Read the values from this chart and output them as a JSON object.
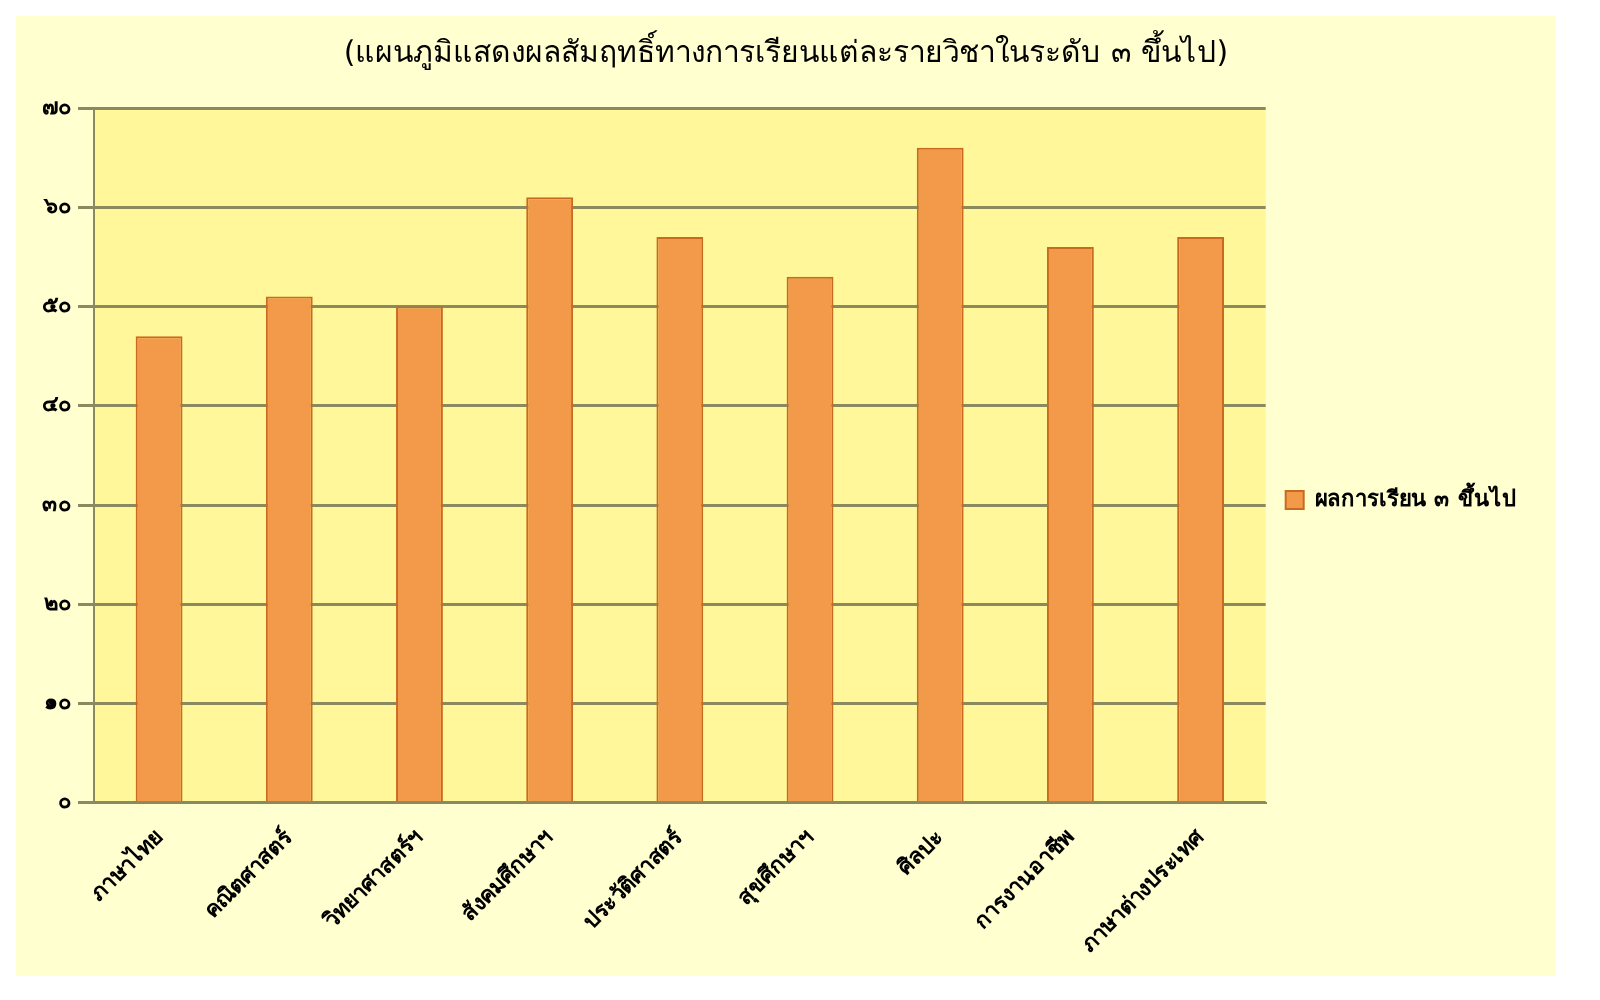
{
  "chart_data": {
    "type": "bar",
    "title": "(แผนภูมิแสดงผลสัมฤทธิ์ทางการเรียนแต่ละรายวิชาในระดับ ๓ ขึ้นไป)",
    "categories": [
      "ภาษาไทย",
      "คณิตศาสตร์",
      "วิทยาศาสตร์ฯ",
      "สังคมศึกษาฯ",
      "ประวัติศาสตร์",
      "สุขศึกษาฯ",
      "ศิลปะ",
      "การงานอาชีพ",
      "ภาษาต่างประเทศ"
    ],
    "series": [
      {
        "name": "ผลการเรียน ๓ ขึ้นไป",
        "color": "#f39a4a",
        "values": [
          47,
          51,
          50,
          61,
          57,
          53,
          66,
          56,
          57
        ]
      }
    ],
    "ylim": [
      0,
      70
    ],
    "yticks": [
      {
        "value": 0,
        "label": "๐"
      },
      {
        "value": 10,
        "label": "๑๐"
      },
      {
        "value": 20,
        "label": "๒๐"
      },
      {
        "value": 30,
        "label": "๓๐"
      },
      {
        "value": 40,
        "label": "๔๐"
      },
      {
        "value": 50,
        "label": "๕๐"
      },
      {
        "value": 60,
        "label": "๖๐"
      },
      {
        "value": 70,
        "label": "๗๐"
      }
    ],
    "grid": "y",
    "legend": "right"
  }
}
